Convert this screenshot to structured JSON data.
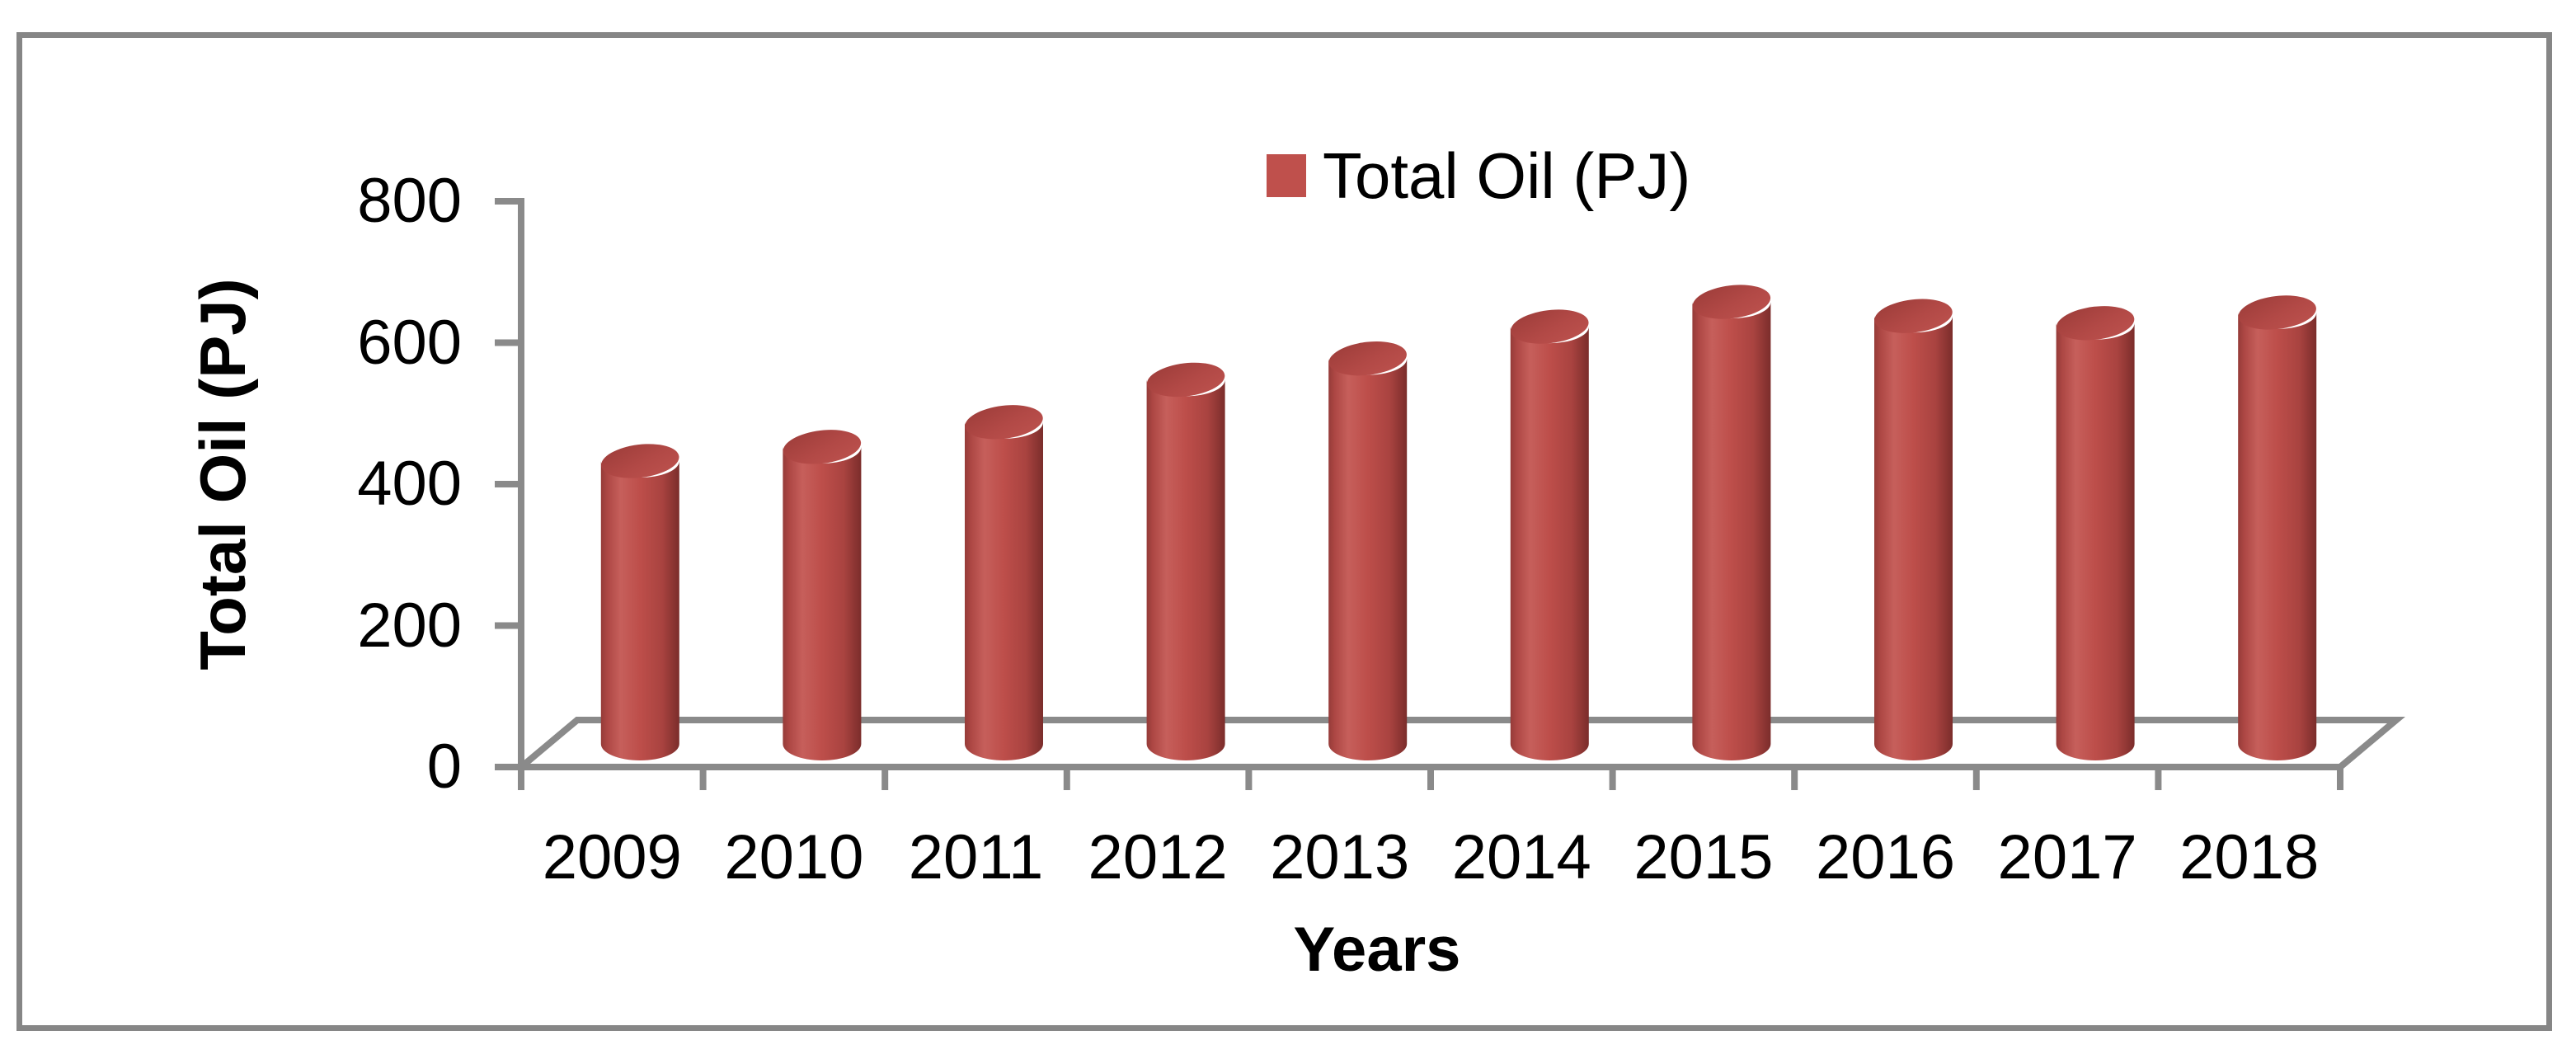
{
  "chart_data": {
    "type": "bar",
    "subtype": "3d-cylinder",
    "title": "",
    "xlabel": "Years",
    "ylabel": "Total Oil (PJ)",
    "categories": [
      "2009",
      "2010",
      "2011",
      "2012",
      "2013",
      "2014",
      "2015",
      "2016",
      "2017",
      "2018"
    ],
    "series": [
      {
        "name": "Total Oil (PJ)",
        "values": [
          400,
          420,
          455,
          515,
          545,
          590,
          625,
          605,
          595,
          610
        ]
      }
    ],
    "ylim": [
      0,
      800
    ],
    "yticks": [
      0,
      200,
      400,
      600,
      800
    ],
    "grid": false,
    "legend": {
      "label": "Total Oil (PJ)",
      "position": "top-center",
      "swatch_color": "#BF504C"
    }
  },
  "colors": {
    "background": "#FFFFFF",
    "border": "#868686",
    "axis": "#8A8A8A",
    "text": "#000000",
    "bar_main": "#BD4E4A",
    "bar_light": "#C65F5B",
    "bar_dark": "#7B2D2B",
    "bar_cap_dark": "#9C3C39",
    "bar_cap_light": "#BD524E"
  }
}
